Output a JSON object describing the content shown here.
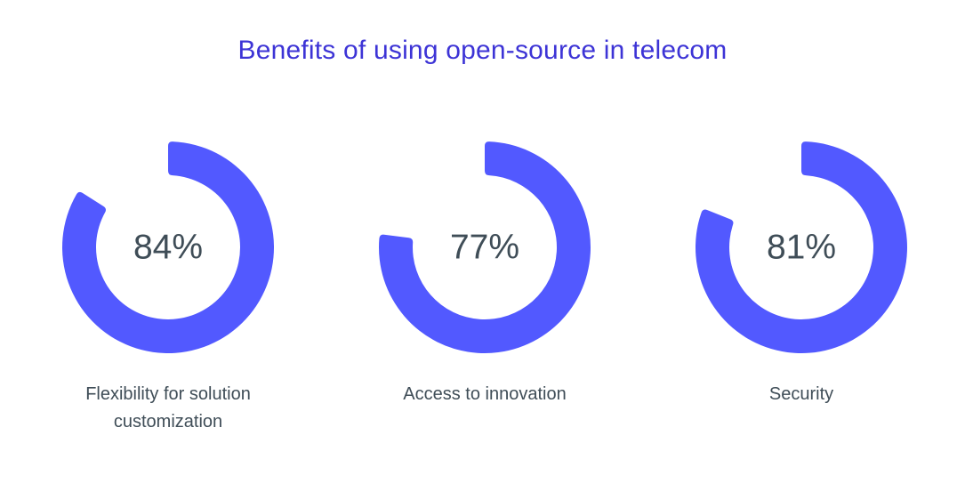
{
  "chart_data": {
    "type": "pie",
    "subtype": "donut",
    "title": "Benefits of using open-source in telecom",
    "unit": "%",
    "color": "#5259ff",
    "items": [
      {
        "label": "Flexibility for solution customization",
        "value": 84,
        "display": "84%"
      },
      {
        "label": "Access to innovation",
        "value": 77,
        "display": "77%"
      },
      {
        "label": "Security",
        "value": 81,
        "display": "81%"
      }
    ]
  }
}
